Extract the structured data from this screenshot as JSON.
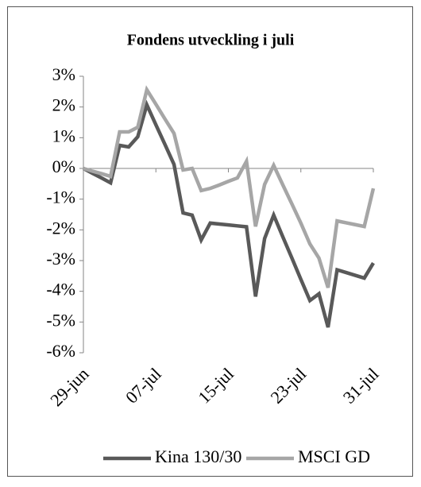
{
  "chart_data": {
    "type": "line",
    "title": "Fondens utveckling i juli",
    "categories": [
      "29-jun",
      null,
      null,
      null,
      null,
      null,
      null,
      null,
      "07-jul",
      null,
      null,
      null,
      null,
      null,
      null,
      null,
      "15-jul",
      null,
      null,
      null,
      null,
      null,
      null,
      null,
      "23-jul",
      null,
      null,
      null,
      null,
      null,
      null,
      null,
      "31-jul"
    ],
    "series": [
      {
        "name": "Kina 130/30",
        "color": "#595959",
        "values": [
          0,
          -0.16,
          -0.31,
          -0.47,
          0.75,
          0.7,
          1.03,
          2.07,
          1.42,
          0.78,
          0.13,
          -1.45,
          -1.52,
          -2.33,
          -1.78,
          -1.81,
          -1.84,
          -1.87,
          -1.9,
          -4.17,
          -2.28,
          -1.52,
          -2.22,
          -2.91,
          -3.61,
          -4.3,
          -4.08,
          -5.17,
          -3.3,
          -3.39,
          -3.48,
          -3.57,
          -3.08
        ]
      },
      {
        "name": "MSCI GD",
        "color": "#a6a6a6",
        "values": [
          0,
          -0.09,
          -0.17,
          -0.26,
          1.19,
          1.19,
          1.34,
          2.56,
          2.09,
          1.61,
          1.14,
          -0.05,
          0,
          -0.72,
          -0.65,
          -0.54,
          -0.42,
          -0.31,
          0.23,
          -1.89,
          -0.52,
          0.1,
          -0.53,
          -1.15,
          -1.78,
          -2.46,
          -2.92,
          -3.88,
          -1.71,
          -1.77,
          -1.83,
          -1.89,
          -0.65
        ]
      }
    ],
    "ylim": [
      -6,
      3
    ],
    "yticks": [
      {
        "value": 3,
        "label": "3%"
      },
      {
        "value": 2,
        "label": "2%"
      },
      {
        "value": 1,
        "label": "1%"
      },
      {
        "value": 0,
        "label": "0%"
      },
      {
        "value": -1,
        "label": "-1%"
      },
      {
        "value": -2,
        "label": "-2%"
      },
      {
        "value": -3,
        "label": "-3%"
      },
      {
        "value": -4,
        "label": "-4%"
      },
      {
        "value": -5,
        "label": "-5%"
      },
      {
        "value": -6,
        "label": "-6%"
      }
    ],
    "legend": "bottom"
  }
}
